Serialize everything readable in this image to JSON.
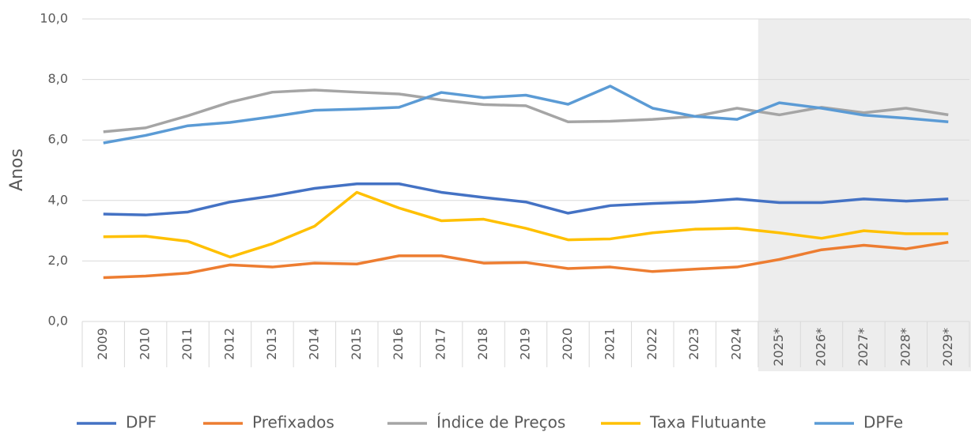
{
  "chart_data": {
    "type": "line",
    "y_label": "Anos",
    "categories": [
      "2009",
      "2010",
      "2011",
      "2012",
      "2013",
      "2014",
      "2015",
      "2016",
      "2017",
      "2018",
      "2019",
      "2020",
      "2021",
      "2022",
      "2023",
      "2024",
      "2025*",
      "2026*",
      "2027*",
      "2028*",
      "2029*"
    ],
    "ylim": [
      0,
      10
    ],
    "yticks": [
      {
        "value": 0,
        "label": "0,0"
      },
      {
        "value": 2,
        "label": "2,0"
      },
      {
        "value": 4,
        "label": "4,0"
      },
      {
        "value": 6,
        "label": "6,0"
      },
      {
        "value": 8,
        "label": "8,0"
      },
      {
        "value": 10,
        "label": "10,0"
      }
    ],
    "grid": true,
    "legend": "bottom",
    "series": [
      {
        "name": "DPF",
        "color": "#4472c4",
        "values": [
          3.55,
          3.52,
          3.62,
          3.95,
          4.15,
          4.4,
          4.55,
          4.55,
          4.27,
          4.1,
          3.95,
          3.58,
          3.83,
          3.9,
          3.95,
          4.05,
          3.93,
          3.93,
          4.05,
          3.98,
          4.05
        ]
      },
      {
        "name": "Prefixados",
        "color": "#ed7d31",
        "values": [
          1.45,
          1.5,
          1.6,
          1.87,
          1.8,
          1.93,
          1.9,
          2.17,
          2.17,
          1.93,
          1.95,
          1.75,
          1.8,
          1.65,
          1.73,
          1.8,
          2.05,
          2.37,
          2.52,
          2.4,
          2.62
        ]
      },
      {
        "name": "Índice de Preços",
        "color": "#a5a5a5",
        "values": [
          6.27,
          6.4,
          6.8,
          7.25,
          7.58,
          7.65,
          7.58,
          7.52,
          7.32,
          7.17,
          7.13,
          6.6,
          6.62,
          6.68,
          6.78,
          7.05,
          6.83,
          7.08,
          6.9,
          7.05,
          6.83
        ]
      },
      {
        "name": "Taxa Flutuante",
        "color": "#ffc000",
        "values": [
          2.8,
          2.82,
          2.65,
          2.13,
          2.57,
          3.15,
          4.27,
          3.75,
          3.33,
          3.38,
          3.08,
          2.7,
          2.73,
          2.93,
          3.05,
          3.08,
          2.93,
          2.75,
          3.0,
          2.9,
          2.9
        ]
      },
      {
        "name": "DPFe",
        "color": "#5b9bd5",
        "values": [
          5.9,
          6.15,
          6.47,
          6.58,
          6.77,
          6.98,
          7.02,
          7.08,
          7.57,
          7.4,
          7.48,
          7.18,
          7.78,
          7.05,
          6.78,
          6.68,
          7.23,
          7.05,
          6.82,
          6.72,
          6.6
        ]
      }
    ]
  }
}
